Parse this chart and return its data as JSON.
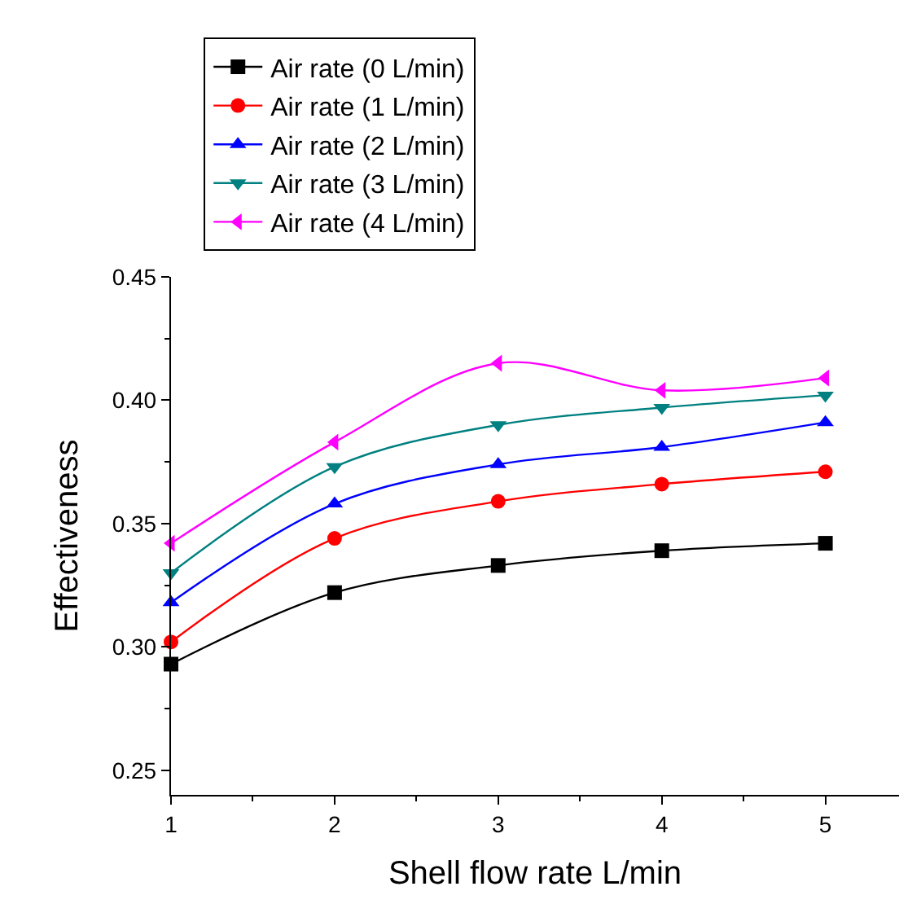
{
  "chart_data": {
    "type": "line",
    "xlabel": "Shell flow rate L/min",
    "ylabel": "Effectiveness",
    "x": [
      1,
      2,
      3,
      4,
      5
    ],
    "xlim": [
      1,
      5.45
    ],
    "ylim": [
      0.24,
      0.45
    ],
    "xticks": [
      1,
      {
        "value": 1.5,
        "label": null
      },
      2,
      {
        "value": 2.5,
        "label": null
      },
      3,
      {
        "value": 3.5,
        "label": null
      },
      4,
      {
        "value": 4.5,
        "label": null
      },
      5
    ],
    "yticks": [
      {
        "value": 0.25,
        "label": "0.25"
      },
      {
        "value": 0.275,
        "label": null
      },
      {
        "value": 0.3,
        "label": "0.30"
      },
      {
        "value": 0.325,
        "label": null
      },
      {
        "value": 0.35,
        "label": "0.35"
      },
      {
        "value": 0.375,
        "label": null
      },
      {
        "value": 0.4,
        "label": "0.40"
      },
      {
        "value": 0.425,
        "label": null
      },
      {
        "value": 0.45,
        "label": "0.45"
      }
    ],
    "legend": "top left",
    "line_style": "solid",
    "series": [
      {
        "name": "Air rate (0 L/min)",
        "color": "#000000",
        "marker": "square",
        "values": [
          0.293,
          0.322,
          0.333,
          0.339,
          0.342
        ]
      },
      {
        "name": "Air rate (1 L/min)",
        "color": "#ff0000",
        "marker": "circle",
        "values": [
          0.302,
          0.344,
          0.359,
          0.366,
          0.371
        ]
      },
      {
        "name": "Air rate (2 L/min)",
        "color": "#0000ff",
        "marker": "triangle",
        "values": [
          0.318,
          0.358,
          0.374,
          0.381,
          0.391
        ]
      },
      {
        "name": "Air rate (3 L/min)",
        "color": "#008080",
        "marker": "triangle-down",
        "values": [
          0.33,
          0.373,
          0.39,
          0.397,
          0.402
        ]
      },
      {
        "name": "Air rate (4 L/min)",
        "color": "#ff00ff",
        "marker": "triangle-left",
        "values": [
          0.342,
          0.383,
          0.415,
          0.404,
          0.409
        ]
      }
    ]
  }
}
